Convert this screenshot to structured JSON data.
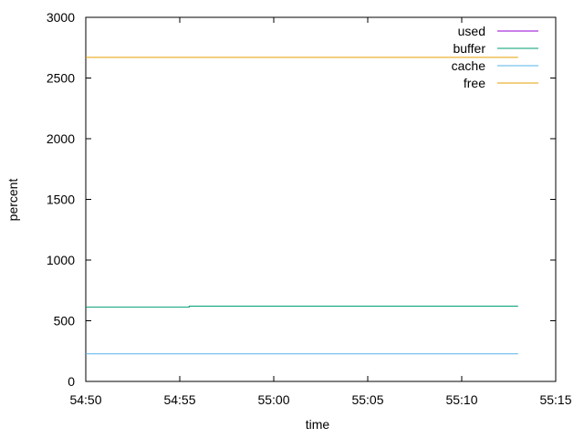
{
  "chart_data": {
    "type": "line",
    "title": "",
    "xlabel": "time",
    "ylabel": "percent",
    "xlim": [
      0,
      25
    ],
    "ylim": [
      0,
      3000
    ],
    "x_ticks": [
      {
        "value": 0,
        "label": "54:50"
      },
      {
        "value": 5,
        "label": "54:55"
      },
      {
        "value": 10,
        "label": "55:00"
      },
      {
        "value": 15,
        "label": "55:05"
      },
      {
        "value": 20,
        "label": "55:10"
      },
      {
        "value": 25,
        "label": "55:15"
      }
    ],
    "y_ticks": [
      {
        "value": 0,
        "label": "0"
      },
      {
        "value": 500,
        "label": "500"
      },
      {
        "value": 1000,
        "label": "1000"
      },
      {
        "value": 1500,
        "label": "1500"
      },
      {
        "value": 2000,
        "label": "2000"
      },
      {
        "value": 2500,
        "label": "2500"
      },
      {
        "value": 3000,
        "label": "3000"
      }
    ],
    "legend_position": "top-right",
    "series": [
      {
        "name": "used",
        "color": "#9400d3",
        "x": [],
        "y": []
      },
      {
        "name": "buffer",
        "color": "#009e73",
        "x": [
          0,
          5.5,
          5.5,
          23
        ],
        "y": [
          612,
          612,
          620,
          620
        ]
      },
      {
        "name": "cache",
        "color": "#56b4e9",
        "x": [
          0,
          23
        ],
        "y": [
          228,
          228
        ]
      },
      {
        "name": "free",
        "color": "#e69f00",
        "x": [
          0,
          23
        ],
        "y": [
          2670,
          2670
        ]
      }
    ]
  }
}
